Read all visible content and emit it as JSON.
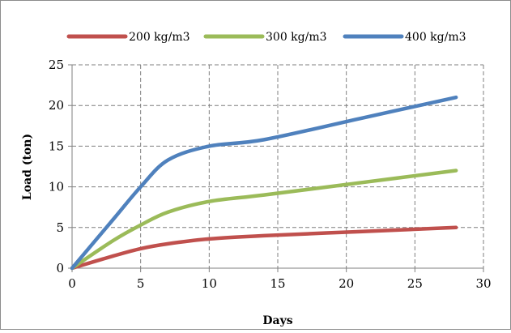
{
  "chart_data": {
    "type": "line",
    "title": "",
    "xlabel": "Days",
    "ylabel": "Load (ton)",
    "xlim": [
      0,
      30
    ],
    "ylim": [
      0,
      25
    ],
    "x_ticks": [
      "0",
      "5",
      "10",
      "15",
      "20",
      "25",
      "30"
    ],
    "y_ticks": [
      "0",
      "5",
      "10",
      "15",
      "20",
      "25"
    ],
    "grid": true,
    "smooth": true,
    "legend_position": "top",
    "series": [
      {
        "name": "200 kg/m3",
        "color": "#c0504d",
        "points": [
          [
            0,
            0
          ],
          [
            3,
            1.5
          ],
          [
            5,
            2.4
          ],
          [
            7,
            3.0
          ],
          [
            10,
            3.6
          ],
          [
            14,
            4.0
          ],
          [
            21,
            4.5
          ],
          [
            28,
            5.0
          ]
        ]
      },
      {
        "name": "300 kg/m3",
        "color": "#9bbb59",
        "points": [
          [
            0,
            0
          ],
          [
            3,
            3.4
          ],
          [
            5,
            5.3
          ],
          [
            7,
            6.9
          ],
          [
            10,
            8.2
          ],
          [
            14,
            9.0
          ],
          [
            21,
            10.5
          ],
          [
            28,
            12.0
          ]
        ]
      },
      {
        "name": "400 kg/m3",
        "color": "#4f81bd",
        "points": [
          [
            0,
            0
          ],
          [
            3,
            6.0
          ],
          [
            5,
            10.0
          ],
          [
            7,
            13.3
          ],
          [
            10,
            15.0
          ],
          [
            14,
            15.8
          ],
          [
            21,
            18.4
          ],
          [
            28,
            21.0
          ]
        ]
      }
    ]
  }
}
